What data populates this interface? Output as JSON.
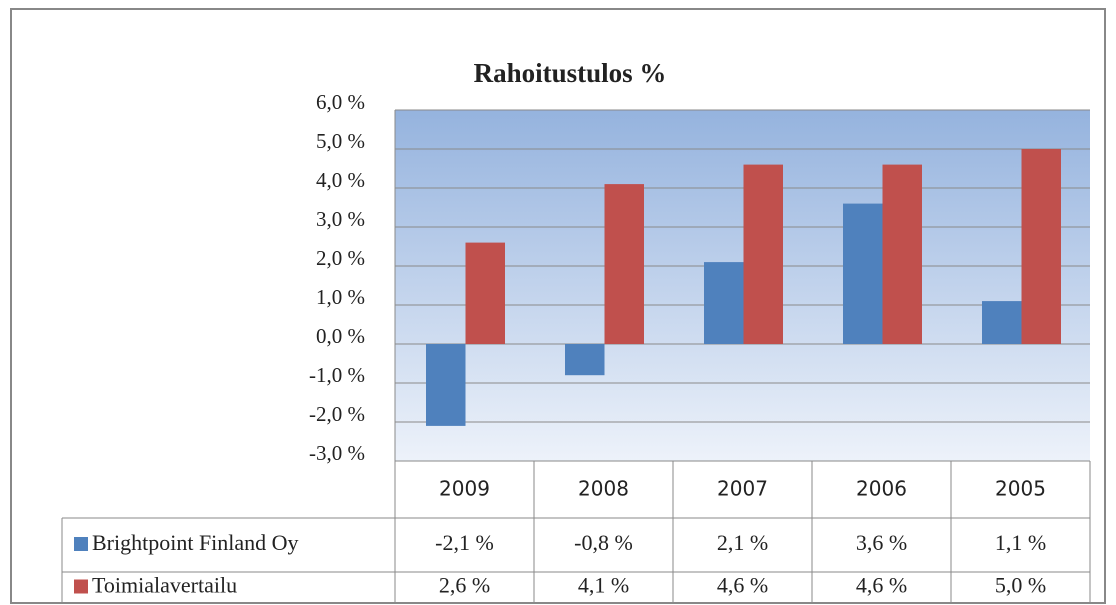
{
  "chart_data": {
    "type": "bar",
    "title": "Rahoitustulos %",
    "categories": [
      "2009",
      "2008",
      "2007",
      "2006",
      "2005"
    ],
    "series": [
      {
        "name": "Brightpoint Finland Oy",
        "color": "#4f81bd",
        "values": [
          -2.1,
          -0.8,
          2.1,
          3.6,
          1.1
        ],
        "value_labels": [
          "-2,1 %",
          "-0,8 %",
          "2,1 %",
          "3,6 %",
          "1,1 %"
        ]
      },
      {
        "name": "Toimialavertailu",
        "color": "#c0504d",
        "values": [
          2.6,
          4.1,
          4.6,
          4.6,
          5.0
        ],
        "value_labels": [
          "2,6 %",
          "4,1 %",
          "4,6 %",
          "4,6 %",
          "5,0 %"
        ]
      }
    ],
    "ylim": [
      -3,
      6
    ],
    "yticks": [
      {
        "value": -3,
        "label": "-3,0 %"
      },
      {
        "value": -2,
        "label": "-2,0 %"
      },
      {
        "value": -1,
        "label": "-1,0 %"
      },
      {
        "value": 0,
        "label": "0,0 %"
      },
      {
        "value": 1,
        "label": "1,0 %"
      },
      {
        "value": 2,
        "label": "2,0 %"
      },
      {
        "value": 3,
        "label": "3,0 %"
      },
      {
        "value": 4,
        "label": "4,0 %"
      },
      {
        "value": 5,
        "label": "5,0 %"
      },
      {
        "value": 6,
        "label": "6,0 %"
      }
    ],
    "grid": true
  }
}
